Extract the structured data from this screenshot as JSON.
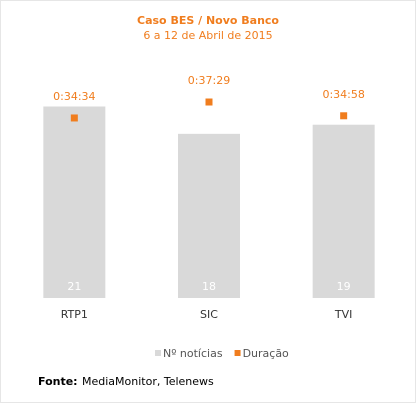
{
  "chart_data": {
    "type": "bar",
    "title": "Caso BES / Novo Banco",
    "subtitle": "6 a 12 de Abril de 2015",
    "categories": [
      "RTP1",
      "SIC",
      "TVI"
    ],
    "series": [
      {
        "name": "Nº notícias",
        "type": "bar",
        "color": "#d9d9d9",
        "values": [
          21,
          18,
          19
        ]
      },
      {
        "name": "Duração",
        "type": "scatter",
        "axis": "y2",
        "color": "#f07d1e",
        "values": [
          2074,
          2249,
          2098
        ],
        "value_labels": [
          "0:34:34",
          "0:37:29",
          "0:34:58"
        ]
      }
    ],
    "ylim": [
      0,
      25
    ],
    "y2lim": [
      100,
      2600
    ],
    "legend": "bottom",
    "source": {
      "label": "Fonte:",
      "text": "MediaMonitor, Telenews"
    }
  }
}
